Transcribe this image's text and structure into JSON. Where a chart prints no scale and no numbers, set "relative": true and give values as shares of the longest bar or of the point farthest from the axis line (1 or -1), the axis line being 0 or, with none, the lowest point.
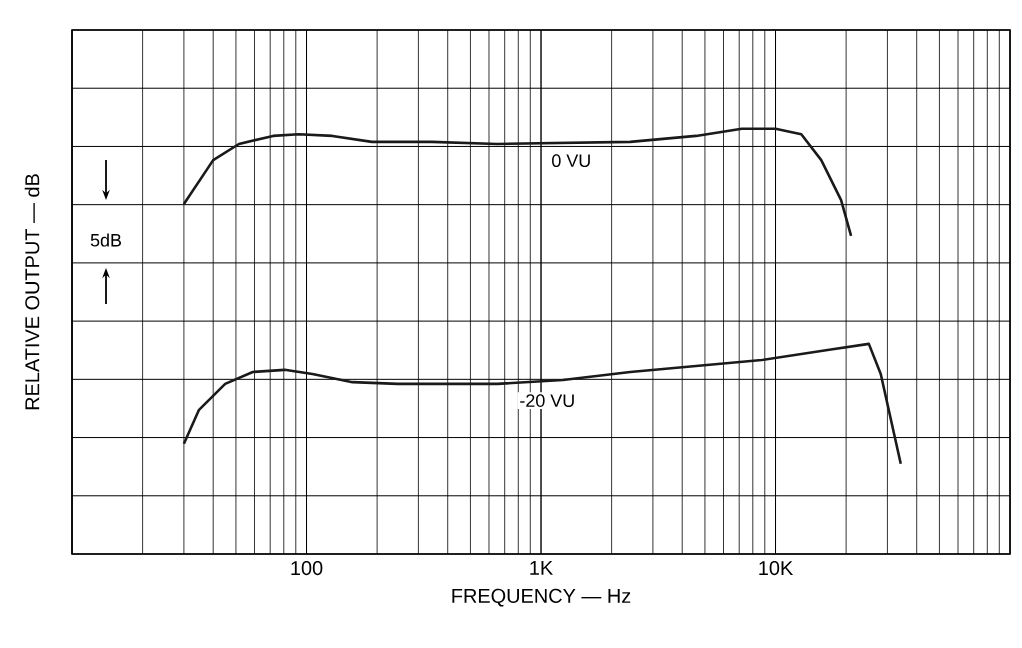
{
  "chart_data": {
    "type": "line",
    "xlabel": "FREQUENCY — Hz",
    "ylabel": "RELATIVE OUTPUT — dB",
    "log": "x",
    "xlim": [
      10,
      100000
    ],
    "xticks": [
      {
        "value": 10,
        "label": null
      },
      {
        "value": 100,
        "label": "100"
      },
      {
        "value": 1000,
        "label": "1K"
      },
      {
        "value": 10000,
        "label": "10K"
      },
      {
        "value": 100000,
        "label": null
      }
    ],
    "relative": true,
    "grid": true,
    "marker": "none",
    "line_style": "solid",
    "annotations": [
      "5dB"
    ],
    "series": [
      {
        "name": "0 VU",
        "color": "#1a1a1a",
        "x": [
          30,
          40,
          51.5,
          72,
          92.5,
          129,
          190,
          342,
          651,
          2400,
          4580,
          7180,
          10000,
          12880,
          15670,
          19040,
          21000
        ],
        "values": [
          0.823,
          0.926,
          0.964,
          0.983,
          0.987,
          0.983,
          0.969,
          0.969,
          0.964,
          0.969,
          0.983,
          1.0,
          1.0,
          0.987,
          0.926,
          0.832,
          0.748
        ]
      },
      {
        "name": "-20 VU",
        "color": "#1a1a1a",
        "x": [
          30,
          34.8,
          45,
          59,
          80.7,
          106,
          157,
          245,
          651,
          1240,
          2400,
          4580,
          8730,
          16950,
          25000,
          28100,
          34200
        ],
        "values": [
          0.259,
          0.339,
          0.4,
          0.428,
          0.433,
          0.423,
          0.404,
          0.4,
          0.4,
          0.409,
          0.428,
          0.442,
          0.456,
          0.48,
          0.494,
          0.423,
          0.212
        ]
      }
    ]
  }
}
